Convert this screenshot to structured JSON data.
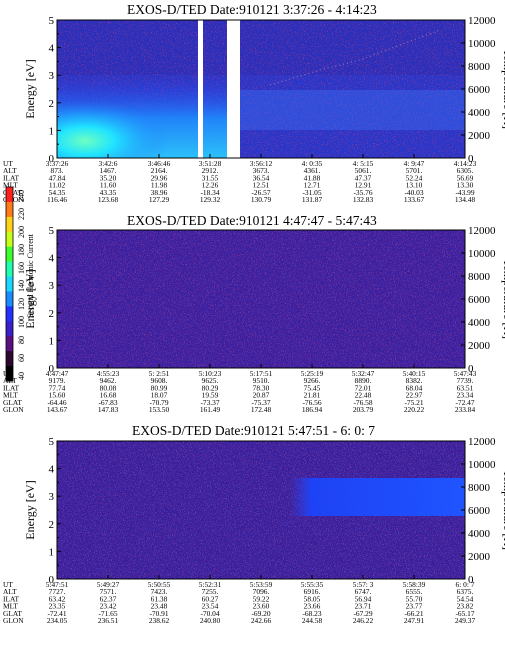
{
  "figure": {
    "colorbar": {
      "label": "Second Harmonic Current",
      "ticks": [
        "40",
        "60",
        "80",
        "100",
        "120",
        "140",
        "160",
        "180",
        "200",
        "220",
        "240"
      ]
    }
  },
  "chart_data": [
    {
      "type": "heatmap",
      "title": "EXOS-D/TED   Date:910121   3:37:26 - 4:14:23",
      "ylabel": "Energy [eV]",
      "y2label": "Temperature [K]",
      "ylim": [
        0,
        5
      ],
      "y2lim": [
        0,
        12000
      ],
      "yticks": [
        "0",
        "1",
        "2",
        "3",
        "4",
        "5"
      ],
      "y2ticks": [
        "0",
        "2000",
        "4000",
        "6000",
        "8000",
        "10000",
        "12000"
      ],
      "data_gaps": [
        [
          "3:50:15",
          "3:50:48"
        ],
        [
          "3:51:50",
          "3:52:55"
        ]
      ],
      "ephemeris_labels": [
        "UT",
        "ALT",
        "ILAT",
        "MLT",
        "GLAT",
        "GLON"
      ],
      "ephemeris": [
        [
          "3:37:26",
          "873.",
          "47.84",
          "11.02",
          "54.35",
          "116.46"
        ],
        [
          "3:42:6",
          "1467.",
          "35.20",
          "11.60",
          "43.35",
          "123.68"
        ],
        [
          "3:46:46",
          "2164.",
          "29.96",
          "11.98",
          "38.96",
          "127.29"
        ],
        [
          "3:51:28",
          "2912.",
          "31.55",
          "12.26",
          "-18.34",
          "129.32"
        ],
        [
          "3:56:12",
          "3673.",
          "36.54",
          "12.51",
          "-26.57",
          "130.79"
        ],
        [
          "4: 0:35",
          "4361.",
          "41.88",
          "12.71",
          "-31.05",
          "131.87"
        ],
        [
          "4: 5:15",
          "5061.",
          "47.37",
          "12.91",
          "-35.76",
          "132.83"
        ],
        [
          "4: 9:47",
          "5701.",
          "52.24",
          "13.10",
          "-40.03",
          "133.67"
        ],
        [
          "4:14:23",
          "6305.",
          "56.69",
          "13.30",
          "-43.99",
          "134.48"
        ]
      ]
    },
    {
      "type": "heatmap",
      "title": "EXOS-D/TED   Date:910121   4:47:47 - 5:47:43",
      "ylabel": "Energy [eV]",
      "y2label": "Temperature [K]",
      "ylim": [
        0,
        5
      ],
      "y2lim": [
        0,
        12000
      ],
      "yticks": [
        "0",
        "1",
        "2",
        "3",
        "4",
        "5"
      ],
      "y2ticks": [
        "0",
        "2000",
        "4000",
        "6000",
        "8000",
        "10000",
        "12000"
      ],
      "ephemeris_labels": [
        "UT",
        "ALT",
        "ILAT",
        "MLT",
        "GLAT",
        "GLON"
      ],
      "ephemeris": [
        [
          "4:47:47",
          "9179.",
          "77.74",
          "15.60",
          "-64.46",
          "143.67"
        ],
        [
          "4:55:23",
          "9462.",
          "80.08",
          "16.68",
          "-67.83",
          "147.83"
        ],
        [
          "5: 2:51",
          "9608.",
          "80.99",
          "18.07",
          "-70.79",
          "153.50"
        ],
        [
          "5:10:23",
          "9625.",
          "80.29",
          "19.59",
          "-73.37",
          "161.49"
        ],
        [
          "5:17:51",
          "9510.",
          "78.30",
          "20.87",
          "-75.37",
          "172.48"
        ],
        [
          "5:25:19",
          "9266.",
          "75.45",
          "21.81",
          "-76.56",
          "186.94"
        ],
        [
          "5:32:47",
          "8890.",
          "72.01",
          "22.48",
          "-76.58",
          "203.79"
        ],
        [
          "5:40:15",
          "8382.",
          "68.04",
          "22.97",
          "-75.21",
          "220.22"
        ],
        [
          "5:47:43",
          "7739.",
          "63.51",
          "23.34",
          "-72.47",
          "233.84"
        ]
      ]
    },
    {
      "type": "heatmap",
      "title": "EXOS-D/TED   Date:910121   5:47:51 - 6: 0: 7",
      "ylabel": "Energy [eV]",
      "y2label": "Temperature [K]",
      "ylim": [
        0,
        5
      ],
      "y2lim": [
        0,
        12000
      ],
      "yticks": [
        "0",
        "1",
        "2",
        "3",
        "4",
        "5"
      ],
      "y2ticks": [
        "0",
        "2000",
        "4000",
        "6000",
        "8000",
        "10000",
        "12000"
      ],
      "ephemeris_labels": [
        "UT",
        "ALT",
        "ILAT",
        "MLT",
        "GLAT",
        "GLON"
      ],
      "ephemeris": [
        [
          "5:47:51",
          "7727.",
          "63.42",
          "23.35",
          "-72.41",
          "234.05"
        ],
        [
          "5:49:27",
          "7571.",
          "62.37",
          "23.42",
          "-71.65",
          "236.51"
        ],
        [
          "5:50:55",
          "7423.",
          "61.38",
          "23.48",
          "-70.91",
          "238.62"
        ],
        [
          "5:52:31",
          "7255.",
          "60.27",
          "23.54",
          "-70.04",
          "240.80"
        ],
        [
          "5:53:59",
          "7096.",
          "59.22",
          "23.60",
          "-69.20",
          "242.66"
        ],
        [
          "5:55:35",
          "6916.",
          "58.05",
          "23.66",
          "-68.23",
          "244.58"
        ],
        [
          "5:57: 3",
          "6747.",
          "56.94",
          "23.71",
          "-67.29",
          "246.22"
        ],
        [
          "5:58:39",
          "6555.",
          "55.70",
          "23.77",
          "-66.21",
          "247.91"
        ],
        [
          "6: 0: 7",
          "6375.",
          "54.54",
          "23.82",
          "-65.17",
          "249.37"
        ]
      ]
    }
  ]
}
